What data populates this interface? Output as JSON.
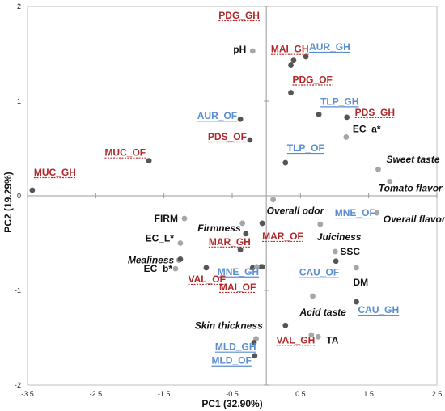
{
  "chart_data": {
    "type": "scatter",
    "xlabel": "PC1 (32.90%)",
    "ylabel": "PC2 (19.29%)",
    "xlim": [
      -3.5,
      2.5
    ],
    "ylim": [
      -2,
      2
    ],
    "x_ticks": [
      "-3.5",
      "-2.5",
      "-1.5",
      "-0.5",
      "0.5",
      "1.5",
      "2.5"
    ],
    "y_ticks": [
      "-2",
      "-1",
      "0",
      "1",
      "2"
    ],
    "colors": {
      "dark_point": "#555555",
      "light_point": "#a6a6a6",
      "red_label": "#b0282a",
      "blue_label": "#5b8ed0"
    },
    "points": [
      {
        "label": "PDG_GH",
        "x": -0.2,
        "y": 1.53,
        "marker": "light",
        "style": "red",
        "anchor": "start",
        "dx": -42,
        "dy": -40
      },
      {
        "label": "pH",
        "x": -0.2,
        "y": 1.53,
        "marker": "light",
        "style": "black",
        "anchor": "end",
        "dx": -8,
        "dy": 2
      },
      {
        "label": "MAI_GH",
        "x": 0.4,
        "y": 1.43,
        "marker": "dark",
        "style": "red",
        "anchor": "start",
        "dx": -28,
        "dy": -10
      },
      {
        "label": "AUR_GH",
        "x": 0.58,
        "y": 1.47,
        "marker": "dark",
        "style": "blue",
        "anchor": "start",
        "dx": 4,
        "dy": -8
      },
      {
        "label": "PDG_OF",
        "x": 0.36,
        "y": 1.09,
        "marker": "dark",
        "style": "red",
        "anchor": "start",
        "dx": 2,
        "dy": -12
      },
      {
        "label": "TLP_GH",
        "x": 0.77,
        "y": 0.86,
        "marker": "dark",
        "style": "blue",
        "anchor": "start",
        "dx": 2,
        "dy": -12
      },
      {
        "label": "PDS_GH",
        "x": 1.18,
        "y": 0.83,
        "marker": "dark",
        "style": "red",
        "anchor": "start",
        "dx": 10,
        "dy": -2
      },
      {
        "label": "AUR_OF",
        "x": -0.38,
        "y": 0.81,
        "marker": "dark",
        "style": "blue",
        "anchor": "end",
        "dx": -4,
        "dy": 0
      },
      {
        "label": "EC_a*",
        "x": 1.17,
        "y": 0.62,
        "marker": "light",
        "style": "black",
        "anchor": "start",
        "dx": 8,
        "dy": -6
      },
      {
        "label": "PDS_OF",
        "x": -0.24,
        "y": 0.59,
        "marker": "dark",
        "style": "red",
        "anchor": "end",
        "dx": -4,
        "dy": 0
      },
      {
        "label": "TLP_OF",
        "x": 0.28,
        "y": 0.35,
        "marker": "dark",
        "style": "blue",
        "anchor": "start",
        "dx": 2,
        "dy": -14
      },
      {
        "label": "MUC_OF",
        "x": -1.72,
        "y": 0.37,
        "marker": "dark",
        "style": "red",
        "anchor": "end",
        "dx": -4,
        "dy": -6
      },
      {
        "label": "Sweet taste",
        "x": 1.64,
        "y": 0.28,
        "marker": "light",
        "style": "italic",
        "anchor": "start",
        "dx": 10,
        "dy": -8
      },
      {
        "label": "MUC_GH",
        "x": -3.43,
        "y": 0.06,
        "marker": "dark",
        "style": "red",
        "anchor": "start",
        "dx": 2,
        "dy": -18
      },
      {
        "label": "Tomato flavor",
        "x": 1.81,
        "y": 0.15,
        "marker": "light",
        "style": "italic",
        "anchor": "start",
        "dx": -14,
        "dy": 12
      },
      {
        "label": "Overall odor",
        "x": 0.1,
        "y": -0.04,
        "marker": "light",
        "style": "italic",
        "anchor": "start",
        "dx": -8,
        "dy": 18
      },
      {
        "label": "MNE_OF",
        "x": 1.62,
        "y": -0.18,
        "marker": "light",
        "style": "blue",
        "anchor": "end",
        "dx": -2,
        "dy": 4
      },
      {
        "label": "Overall flavor",
        "x": 1.62,
        "y": -0.18,
        "marker": "light",
        "style": "italic",
        "anchor": "start",
        "dx": 8,
        "dy": 12
      },
      {
        "label": "FIRM",
        "x": -1.2,
        "y": -0.24,
        "marker": "light",
        "style": "black",
        "anchor": "end",
        "dx": -8,
        "dy": 4
      },
      {
        "label": "Firmness",
        "x": -0.35,
        "y": -0.29,
        "marker": "light",
        "style": "italic",
        "anchor": "end",
        "dx": -2,
        "dy": 10
      },
      {
        "label": "MAR_OF",
        "x": -0.06,
        "y": -0.29,
        "marker": "dark",
        "style": "red",
        "anchor": "start",
        "dx": 0,
        "dy": 20
      },
      {
        "label": "Juiciness",
        "x": 0.79,
        "y": -0.3,
        "marker": "light",
        "style": "italic",
        "anchor": "start",
        "dx": -4,
        "dy": 20
      },
      {
        "label": "MAR_GH",
        "x": -0.3,
        "y": -0.4,
        "marker": "dark",
        "style": "red",
        "anchor": "end",
        "dx": 6,
        "dy": 14
      },
      {
        "label": "EC_L*",
        "x": -1.26,
        "y": -0.5,
        "marker": "light",
        "style": "black",
        "anchor": "end",
        "dx": -8,
        "dy": -2
      },
      {
        "label": "SSC",
        "x": 1.01,
        "y": -0.59,
        "marker": "light",
        "style": "black",
        "anchor": "start",
        "dx": 6,
        "dy": 4
      },
      {
        "label": "CAU_OF",
        "x": 1.02,
        "y": -0.69,
        "marker": "dark",
        "style": "blue",
        "anchor": "end",
        "dx": 4,
        "dy": 18
      },
      {
        "label": "Mealiness",
        "x": -1.28,
        "y": -0.68,
        "marker": "light",
        "style": "italic",
        "anchor": "end",
        "dx": -6,
        "dy": 4
      },
      {
        "label": "MNE_GH",
        "x": -0.06,
        "y": -0.75,
        "marker": "dark",
        "style": "blue",
        "anchor": "end",
        "dx": -4,
        "dy": 10
      },
      {
        "label": "EC_b*",
        "x": -1.33,
        "y": -0.77,
        "marker": "light",
        "style": "black",
        "anchor": "end",
        "dx": -4,
        "dy": 4
      },
      {
        "label": "VAL_OF",
        "x": -0.88,
        "y": -0.76,
        "marker": "dark",
        "style": "red",
        "anchor": "end",
        "dx": 24,
        "dy": 18
      },
      {
        "label": "MAI_OF",
        "x": -0.2,
        "y": -0.76,
        "marker": "dark",
        "style": "red",
        "anchor": "end",
        "dx": 4,
        "dy": 28
      },
      {
        "label": "DM",
        "x": 1.32,
        "y": -0.76,
        "marker": "light",
        "style": "black",
        "anchor": "start",
        "dx": -4,
        "dy": 22
      },
      {
        "label": "Acid taste",
        "x": 0.68,
        "y": -1.06,
        "marker": "light",
        "style": "italic",
        "anchor": "start",
        "dx": -16,
        "dy": 24
      },
      {
        "label": "CAU_GH",
        "x": 1.32,
        "y": -1.12,
        "marker": "dark",
        "style": "blue",
        "anchor": "start",
        "dx": 2,
        "dy": 14
      },
      {
        "label": "Skin thickness",
        "x": 0.28,
        "y": -1.37,
        "marker": "dark",
        "style": "italic",
        "anchor": "end",
        "dx": -28,
        "dy": 4
      },
      {
        "label": "VAL_GH",
        "x": 0.76,
        "y": -1.49,
        "marker": "light",
        "style": "red",
        "anchor": "end",
        "dx": -4,
        "dy": 8
      },
      {
        "label": "TA",
        "x": 0.76,
        "y": -1.49,
        "marker": "light",
        "style": "black",
        "anchor": "start",
        "dx": 10,
        "dy": 8
      },
      {
        "label": "MLD_GH",
        "x": -0.15,
        "y": -1.51,
        "marker": "light",
        "style": "blue",
        "anchor": "end",
        "dx": 0,
        "dy": 14
      },
      {
        "label": "MLD_OF",
        "x": -0.17,
        "y": -1.69,
        "marker": "dark",
        "style": "blue",
        "anchor": "end",
        "dx": -4,
        "dy": 10
      }
    ],
    "extra_points": [
      {
        "x": 0.36,
        "y": 1.38,
        "marker": "dark"
      },
      {
        "x": -0.08,
        "y": -0.75,
        "marker": "dark"
      },
      {
        "x": -0.14,
        "y": -0.75,
        "marker": "light"
      },
      {
        "x": -0.18,
        "y": -1.55,
        "marker": "dark"
      },
      {
        "x": 0.66,
        "y": -1.47,
        "marker": "light"
      },
      {
        "x": -1.26,
        "y": -0.67,
        "marker": "dark"
      },
      {
        "x": -0.38,
        "y": -0.57,
        "marker": "dark"
      }
    ]
  }
}
